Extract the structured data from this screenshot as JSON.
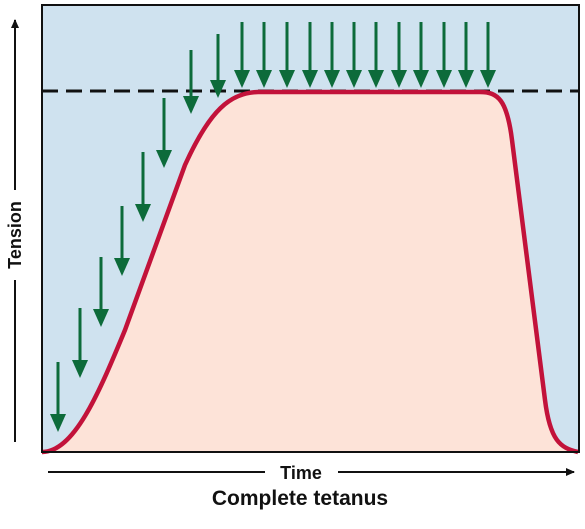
{
  "diagram": {
    "caption": "Complete tetanus",
    "xlabel": "Time",
    "ylabel": "Tension",
    "colors": {
      "plot_background": "#cfe2ef",
      "curve_fill": "#fde3d8",
      "curve_stroke": "#c2123a",
      "stimulus_arrows": "#0d6b3a",
      "max_tension_line": "#111111",
      "frame": "#111111"
    },
    "stimulus_count": 20
  }
}
